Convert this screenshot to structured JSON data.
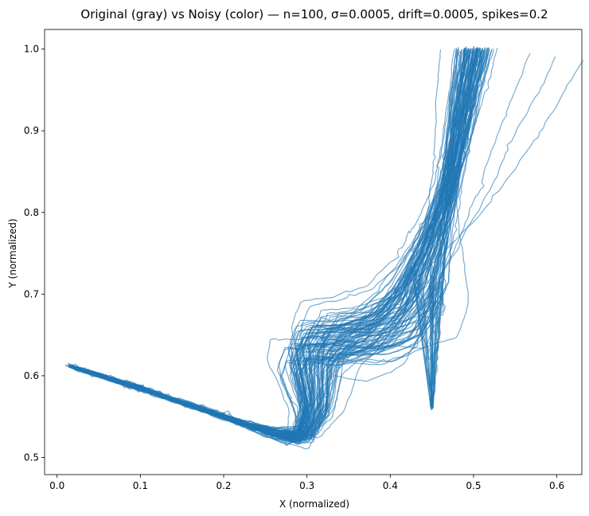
{
  "chart_data": {
    "type": "line",
    "title": "Original (gray) vs Noisy (color) — n=100, σ=0.0005, drift=0.0005, spikes=0.2",
    "xlabel": "X (normalized)",
    "ylabel": "Y (normalized)",
    "xlim": [
      -0.015,
      0.63
    ],
    "ylim": [
      0.479,
      1.024
    ],
    "xticks": [
      0.0,
      0.1,
      0.2,
      0.3,
      0.4,
      0.5,
      0.6
    ],
    "xtick_labels": [
      "0.0",
      "0.1",
      "0.2",
      "0.3",
      "0.4",
      "0.5",
      "0.6"
    ],
    "yticks": [
      0.5,
      0.6,
      0.7,
      0.8,
      0.9,
      1.0
    ],
    "ytick_labels": [
      "0.5",
      "0.6",
      "0.7",
      "0.8",
      "0.9",
      "1.0"
    ],
    "grid": false,
    "series_color": "#1f77b4",
    "series_alpha": 0.6,
    "trajectory_count": 100,
    "shape_template": {
      "x": [
        0.015,
        0.1,
        0.2,
        0.26,
        0.295,
        0.31,
        0.305,
        0.32,
        0.36,
        0.4,
        0.43,
        0.45,
        0.47,
        0.48,
        0.49,
        0.5
      ],
      "y": [
        0.612,
        0.585,
        0.55,
        0.53,
        0.525,
        0.56,
        0.62,
        0.645,
        0.645,
        0.66,
        0.7,
        0.76,
        0.83,
        0.89,
        0.95,
        1.0
      ]
    },
    "outlier_ends": [
      [
        0.555,
        0.995
      ],
      [
        0.585,
        0.99
      ],
      [
        0.605,
        0.985
      ]
    ],
    "tail_end": [
      0.45,
      0.56
    ]
  }
}
